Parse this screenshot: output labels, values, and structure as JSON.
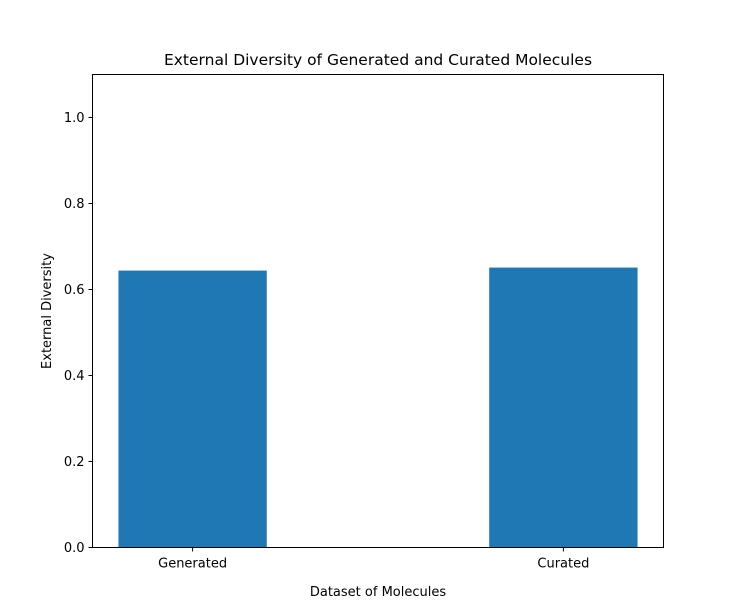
{
  "chart_data": {
    "type": "bar",
    "title": "External Diversity of Generated and Curated Molecules",
    "xlabel": "Dataset of Molecules",
    "ylabel": "External Diversity",
    "categories": [
      "Generated",
      "Curated"
    ],
    "values": [
      0.644,
      0.651
    ],
    "ylim": [
      0,
      1.1
    ],
    "yticks": [
      "0.0",
      "0.2",
      "0.4",
      "0.6",
      "0.8",
      "1.0"
    ],
    "grid": false,
    "legend": "none",
    "bar_color": "#1f77b4"
  }
}
